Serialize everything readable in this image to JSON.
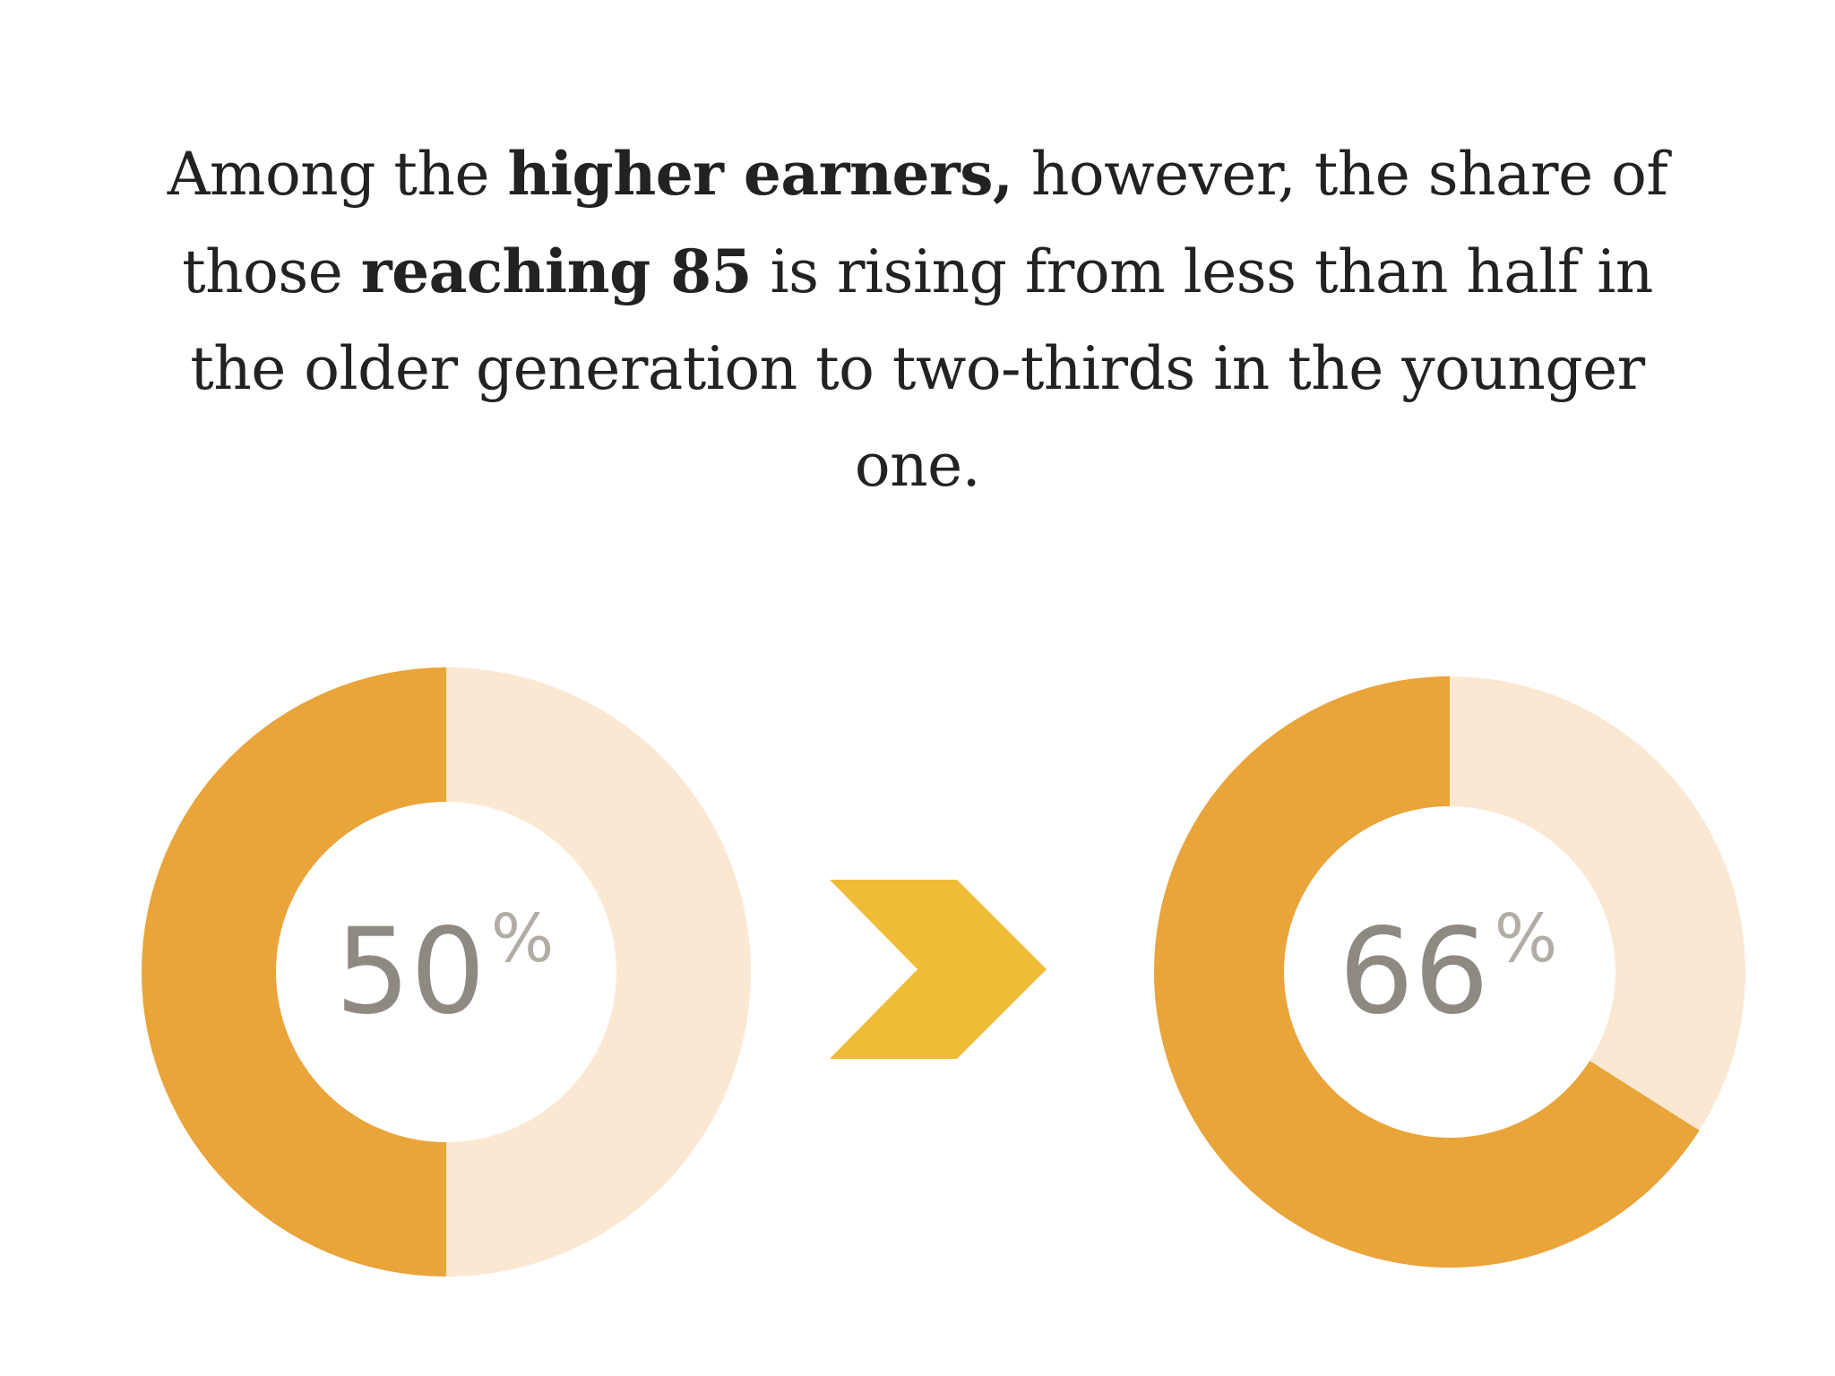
{
  "caption": {
    "t1": "Among the ",
    "b1": "higher earners,",
    "t2": " however, the share of those ",
    "b2": "reaching 85",
    "t3": " is rising from less than half in the older generation to two-thirds in the younger one."
  },
  "colors": {
    "filled": "#e9a43a",
    "remaining": "#fbe8d2",
    "arrow": "#f0bb35",
    "value_text": "#8f8a81",
    "percent_text": "#b2ada4"
  },
  "chart_data": {
    "type": "pie",
    "style": "donut",
    "charts": [
      {
        "value": 50,
        "label": "50",
        "unit": "%"
      },
      {
        "value": 66,
        "label": "66",
        "unit": "%"
      }
    ],
    "connector": "chevron-arrow"
  }
}
